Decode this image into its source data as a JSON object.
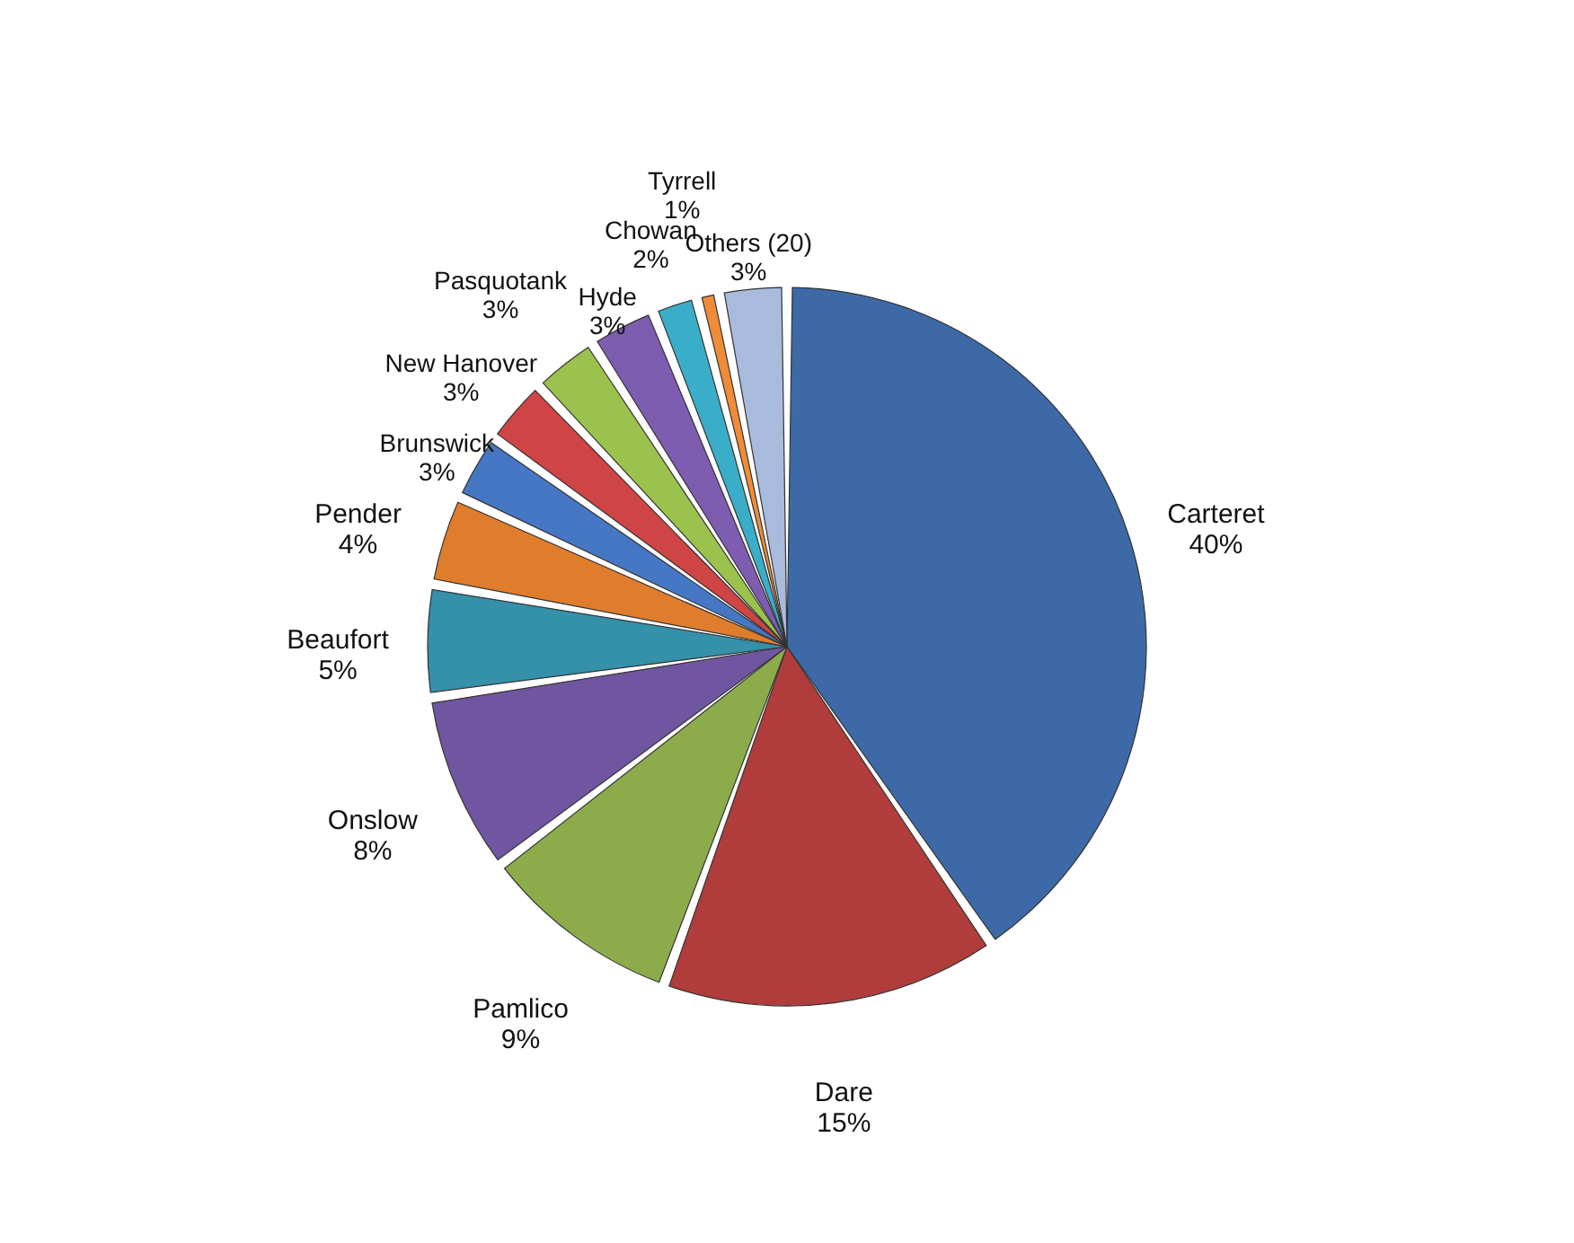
{
  "chart_data": {
    "type": "pie",
    "categories": [
      "Carteret",
      "Dare",
      "Pamlico",
      "Onslow",
      "Beaufort",
      "Pender",
      "Brunswick",
      "New Hanover",
      "Pasquotank",
      "Hyde",
      "Chowan",
      "Tyrrell",
      "Others (20)"
    ],
    "values": [
      40,
      15,
      9,
      8,
      5,
      4,
      3,
      3,
      3,
      3,
      2,
      1,
      3
    ],
    "value_labels": [
      "40%",
      "15%",
      "9%",
      "8%",
      "5%",
      "4%",
      "3%",
      "3%",
      "3%",
      "3%",
      "2%",
      "1%",
      "3%"
    ],
    "colors": [
      "#3d6aa6",
      "#b03c3c",
      "#8cac4c",
      "#7056a0",
      "#3590aa",
      "#e07d2c",
      "#4677c4",
      "#cf4444",
      "#9cc24e",
      "#7e5cb0",
      "#3aaec8",
      "#f08c38",
      "#a9bbdd"
    ]
  }
}
